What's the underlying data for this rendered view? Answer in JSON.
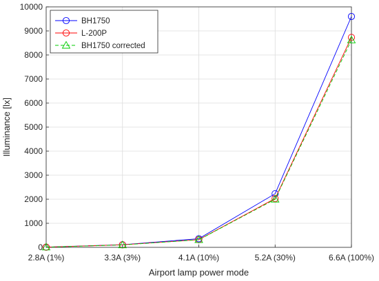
{
  "chart_data": {
    "type": "line",
    "categories": [
      "2.8A (1%)",
      "3.3A (3%)",
      "4.1A (10%)",
      "5.2A (30%)",
      "6.6A (100%)"
    ],
    "series": [
      {
        "name": "BH1750",
        "values": [
          10,
          110,
          360,
          2230,
          9600
        ],
        "color": "#0000ff",
        "marker": "circle",
        "dash": "solid"
      },
      {
        "name": "L-200P",
        "values": [
          8,
          105,
          320,
          2030,
          8730
        ],
        "color": "#ff0000",
        "marker": "circle",
        "dash": "solid"
      },
      {
        "name": "BH1750 corrected",
        "values": [
          9,
          100,
          315,
          2000,
          8620
        ],
        "color": "#00cc00",
        "marker": "triangle",
        "dash": "dashed"
      }
    ],
    "yticks": [
      "0",
      "1000",
      "2000",
      "3000",
      "4000",
      "5000",
      "6000",
      "7000",
      "8000",
      "9000",
      "10000"
    ],
    "xlabel": "Airport lamp power mode",
    "ylabel": "Illuminance [lx]",
    "ylim": [
      0,
      10000
    ],
    "grid": true,
    "legend_position": "top-left"
  }
}
